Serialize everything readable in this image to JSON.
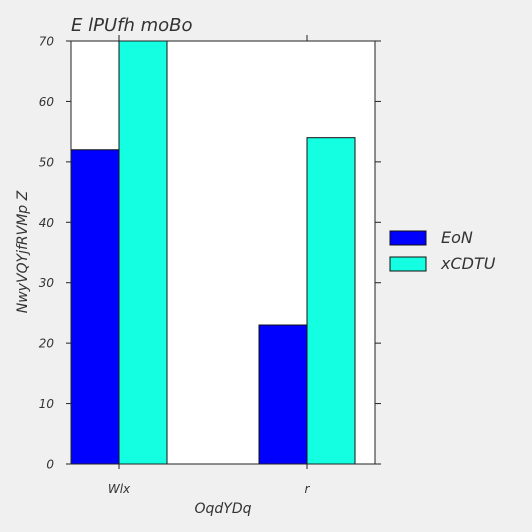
{
  "chart_data": {
    "type": "bar",
    "title": "E lPUfh moBo",
    "xlabel": "OqdYDq",
    "ylabel": "NwyVQYjfRVMp Z",
    "categories": [
      "Wlx",
      "r"
    ],
    "series": [
      {
        "name": "EoN",
        "values": [
          52,
          23
        ],
        "color": "#0000ff"
      },
      {
        "name": "xCDTU",
        "values": [
          70,
          54
        ],
        "color": "#14ffe2"
      }
    ],
    "ylim": [
      0,
      70
    ],
    "yticks": [
      0,
      10,
      20,
      30,
      40,
      50,
      60,
      70
    ],
    "grid": false,
    "legend_position": "right"
  }
}
